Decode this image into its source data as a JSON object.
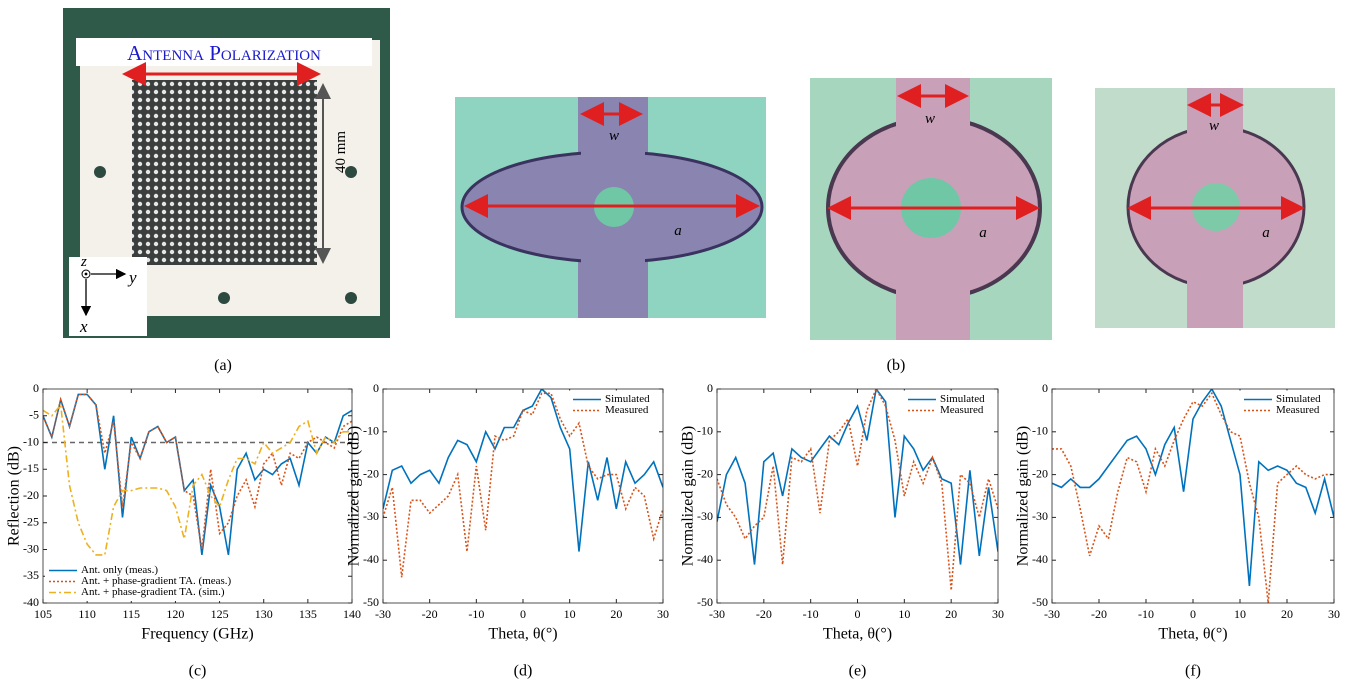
{
  "figure": {
    "photo_a": {
      "polarization": "Antenna Polarization",
      "dimension": "40 mm",
      "axis_z": "z",
      "axis_y": "y",
      "axis_x": "x"
    },
    "photo_b": [
      {
        "width": "w",
        "length": "a"
      },
      {
        "width": "w",
        "length": "a"
      },
      {
        "width": "w",
        "length": "a"
      }
    ],
    "captions": [
      "(a)",
      "(b)"
    ]
  },
  "chart_data": [
    {
      "type": "line",
      "caption": "(c)",
      "x_label": "Frequency (GHz)",
      "y_label": "Reflection (dB)",
      "x": [
        105,
        106,
        107,
        108,
        109,
        110,
        111,
        112,
        113,
        114,
        115,
        116,
        117,
        118,
        119,
        120,
        121,
        122,
        123,
        124,
        125,
        126,
        127,
        128,
        129,
        130,
        131,
        132,
        133,
        134,
        135,
        136,
        137,
        138,
        139,
        140
      ],
      "xlim": [
        105,
        140
      ],
      "xticks": [
        105,
        110,
        115,
        120,
        125,
        130,
        135,
        140
      ],
      "ylim": [
        -40,
        0
      ],
      "yticks": [
        0,
        -5,
        -10,
        -15,
        -20,
        -25,
        -30,
        -35,
        -40
      ],
      "reference_line": -10,
      "legend": "lower-left",
      "series": [
        {
          "name": "Ant. only (meas.)",
          "color": "#0072bd",
          "dash": "solid",
          "values": [
            -5,
            -9,
            -2,
            -7,
            -1,
            -1,
            -3,
            -15,
            -5,
            -24,
            -9,
            -13,
            -8,
            -7,
            -10,
            -9,
            -19,
            -17,
            -31,
            -18,
            -22,
            -31,
            -15,
            -12,
            -17,
            -15,
            -16,
            -14,
            -13,
            -18,
            -10,
            -12,
            -9,
            -10,
            -5,
            -4
          ]
        },
        {
          "name": "Ant. + phase-gradient TA. (meas.)",
          "color": "#d95319",
          "dash": "dotted",
          "values": [
            -5,
            -9,
            -2,
            -7,
            -1,
            -1,
            -3,
            -12,
            -6,
            -22,
            -10,
            -13,
            -8,
            -7,
            -10,
            -9,
            -19,
            -20,
            -30,
            -15,
            -27,
            -25,
            -20,
            -17,
            -22,
            -14,
            -12,
            -18,
            -12,
            -13,
            -10,
            -9,
            -10,
            -11,
            -7,
            -6
          ]
        },
        {
          "name": "Ant. + phase-gradient TA. (sim.)",
          "color": "#edb120",
          "dash": "dashdot",
          "values": [
            -4,
            -5,
            -3,
            -18,
            -25,
            -29,
            -31,
            -31,
            -22,
            -19,
            -19,
            -18.5,
            -18.5,
            -18.5,
            -19,
            -22,
            -28,
            -18,
            -16,
            -20,
            -22,
            -17,
            -13,
            -13,
            -14,
            -10,
            -12,
            -11,
            -10,
            -7,
            -6,
            -12,
            -9,
            -10,
            -8,
            -8
          ]
        }
      ]
    },
    {
      "type": "line",
      "caption": "(d)",
      "x_label": "Theta, θ(°)",
      "y_label": "Normalized gain (dB)",
      "x": [
        -30,
        -28,
        -26,
        -24,
        -22,
        -20,
        -18,
        -16,
        -14,
        -12,
        -10,
        -8,
        -6,
        -4,
        -2,
        0,
        2,
        4,
        6,
        8,
        10,
        12,
        14,
        16,
        18,
        20,
        22,
        24,
        26,
        28,
        30
      ],
      "xlim": [
        -30,
        30
      ],
      "xticks": [
        -30,
        -20,
        -10,
        0,
        10,
        20,
        30
      ],
      "ylim": [
        -50,
        0
      ],
      "yticks": [
        0,
        -10,
        -20,
        -30,
        -40,
        -50
      ],
      "legend": "upper-right",
      "series": [
        {
          "name": "Simulated",
          "color": "#0072bd",
          "dash": "solid",
          "values": [
            -28,
            -19,
            -18,
            -22,
            -20,
            -19,
            -22,
            -16,
            -12,
            -13,
            -17,
            -10,
            -14,
            -9,
            -9,
            -5,
            -4,
            0,
            -2,
            -9,
            -14,
            -38,
            -17,
            -26,
            -16,
            -28,
            -17,
            -22,
            -20,
            -17,
            -23
          ]
        },
        {
          "name": "Measured",
          "color": "#d95319",
          "dash": "dotted",
          "values": [
            -30,
            -23,
            -44,
            -26,
            -26,
            -29,
            -27,
            -25,
            -20,
            -38,
            -18,
            -33,
            -11,
            -12,
            -11,
            -5,
            -6,
            -1,
            -1,
            -7,
            -11,
            -8,
            -18,
            -21,
            -20,
            -20,
            -28,
            -23,
            -25,
            -35,
            -28
          ]
        }
      ]
    },
    {
      "type": "line",
      "caption": "(e)",
      "x_label": "Theta, θ(°)",
      "y_label": "Normalized gain (dB)",
      "x": [
        -30,
        -28,
        -26,
        -24,
        -22,
        -20,
        -18,
        -16,
        -14,
        -12,
        -10,
        -8,
        -6,
        -4,
        -2,
        0,
        2,
        4,
        6,
        8,
        10,
        12,
        14,
        16,
        18,
        20,
        22,
        24,
        26,
        28,
        30
      ],
      "xlim": [
        -30,
        30
      ],
      "xticks": [
        -30,
        -20,
        -10,
        0,
        10,
        20,
        30
      ],
      "ylim": [
        -50,
        0
      ],
      "yticks": [
        0,
        -10,
        -20,
        -30,
        -40,
        -50
      ],
      "legend": "upper-right",
      "series": [
        {
          "name": "Simulated",
          "color": "#0072bd",
          "dash": "solid",
          "values": [
            -31,
            -20,
            -16,
            -22,
            -41,
            -17,
            -15,
            -25,
            -14,
            -16,
            -17,
            -14,
            -11,
            -13,
            -8,
            -4,
            -12,
            0,
            -3,
            -30,
            -11,
            -14,
            -19,
            -16,
            -21,
            -22,
            -41,
            -19,
            -39,
            -23,
            -38
          ]
        },
        {
          "name": "Measured",
          "color": "#d95319",
          "dash": "dotted",
          "values": [
            -21,
            -27,
            -30,
            -35,
            -32,
            -30,
            -18,
            -41,
            -16,
            -17,
            -14,
            -29,
            -12,
            -10,
            -7,
            -18,
            -5,
            0,
            -4,
            -12,
            -25,
            -17,
            -22,
            -16,
            -22,
            -47,
            -20,
            -22,
            -30,
            -21,
            -28
          ]
        }
      ]
    },
    {
      "type": "line",
      "caption": "(f)",
      "x_label": "Theta, θ(°)",
      "y_label": "Normalized gain (dB)",
      "x": [
        -30,
        -28,
        -26,
        -24,
        -22,
        -20,
        -18,
        -16,
        -14,
        -12,
        -10,
        -8,
        -6,
        -4,
        -2,
        0,
        2,
        4,
        6,
        8,
        10,
        12,
        14,
        16,
        18,
        20,
        22,
        24,
        26,
        28,
        30
      ],
      "xlim": [
        -30,
        30
      ],
      "xticks": [
        -30,
        -20,
        -10,
        0,
        10,
        20,
        30
      ],
      "ylim": [
        -50,
        0
      ],
      "yticks": [
        0,
        -10,
        -20,
        -30,
        -40,
        -50
      ],
      "legend": "upper-right",
      "series": [
        {
          "name": "Simulated",
          "color": "#0072bd",
          "dash": "solid",
          "values": [
            -22,
            -23,
            -21,
            -23,
            -23,
            -21,
            -18,
            -15,
            -12,
            -11,
            -14,
            -20,
            -13,
            -9,
            -24,
            -7,
            -3,
            0,
            -4,
            -12,
            -20,
            -46,
            -17,
            -19,
            -18,
            -19,
            -22,
            -23,
            -29,
            -21,
            -30
          ]
        },
        {
          "name": "Measured",
          "color": "#d95319",
          "dash": "dotted",
          "values": [
            -14,
            -14,
            -18,
            -28,
            -39,
            -32,
            -35,
            -24,
            -16,
            -17,
            -24,
            -14,
            -18,
            -12,
            -7,
            -3,
            -4,
            -1,
            -6,
            -10,
            -11,
            -22,
            -30,
            -50,
            -22,
            -20,
            -18,
            -20,
            -21,
            -20,
            -20
          ]
        }
      ]
    }
  ]
}
